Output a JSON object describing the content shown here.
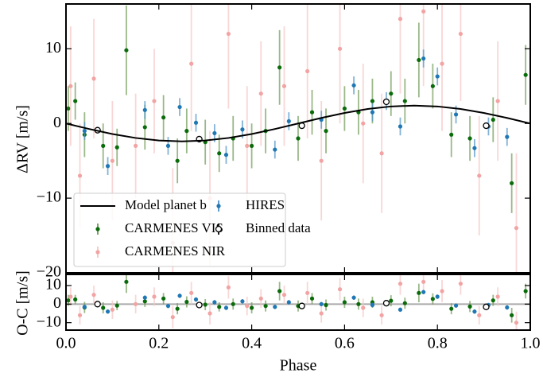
{
  "chart_data": [
    {
      "type": "errorbar",
      "ylabel": "ΔRV [m/s]",
      "xlim": [
        0,
        1
      ],
      "ylim": [
        -20,
        16
      ],
      "xticks": [
        0,
        0.2,
        0.4,
        0.6,
        0.8,
        1
      ],
      "yticks": [
        {
          "value": -20,
          "label": "−20"
        },
        {
          "value": -10,
          "label": "−10"
        },
        0,
        10
      ],
      "legend": "lower left",
      "series": [
        {
          "name": "Model planet b",
          "marker": "line",
          "color": "#000000",
          "x": [
            0,
            0.05,
            0.1,
            0.15,
            0.2,
            0.25,
            0.3,
            0.35,
            0.4,
            0.45,
            0.5,
            0.55,
            0.6,
            0.65,
            0.7,
            0.75,
            0.8,
            0.85,
            0.9,
            0.95,
            1
          ],
          "values": [
            0,
            -0.74,
            -1.41,
            -1.94,
            -2.28,
            -2.4,
            -2.28,
            -1.94,
            -1.41,
            -0.74,
            0,
            0.74,
            1.41,
            1.94,
            2.28,
            2.4,
            2.28,
            1.94,
            1.41,
            0.74,
            0
          ]
        },
        {
          "name": "CARMENES VIS",
          "marker": "point",
          "color": "#0a6b0a",
          "error_color": "#6f9a55",
          "x": [
            0.005,
            0.02,
            0.04,
            0.08,
            0.11,
            0.13,
            0.17,
            0.21,
            0.24,
            0.26,
            0.3,
            0.33,
            0.36,
            0.4,
            0.43,
            0.46,
            0.5,
            0.53,
            0.56,
            0.6,
            0.63,
            0.66,
            0.7,
            0.73,
            0.76,
            0.79,
            0.83,
            0.87,
            0.92,
            0.96,
            0.99
          ],
          "values": [
            2,
            3,
            -1.5,
            -3,
            -3.2,
            9.8,
            -0.5,
            0.8,
            -5,
            -1,
            -2.5,
            -4,
            -2,
            -3,
            -1,
            7.5,
            -2,
            1.5,
            -1,
            2,
            1.5,
            3,
            4,
            3,
            8.5,
            5,
            -1.5,
            -2,
            0.5,
            -8,
            6.5
          ],
          "errors": [
            3,
            2.5,
            3,
            3,
            2.5,
            6,
            3,
            3,
            3,
            3,
            3,
            2.5,
            3,
            3,
            3,
            5,
            3,
            3,
            3,
            3,
            3,
            3,
            3,
            3,
            5,
            3,
            3,
            3,
            3,
            4,
            4
          ]
        },
        {
          "name": "CARMENES NIR",
          "marker": "point",
          "color": "#f2a3a3",
          "error_color": "#f7c4c4",
          "x": [
            0.01,
            0.03,
            0.06,
            0.1,
            0.15,
            0.19,
            0.23,
            0.27,
            0.31,
            0.35,
            0.39,
            0.42,
            0.47,
            0.52,
            0.55,
            0.59,
            0.64,
            0.68,
            0.72,
            0.77,
            0.81,
            0.85,
            0.89,
            0.93,
            0.97
          ],
          "values": [
            5,
            -7,
            6,
            -5,
            -3,
            3,
            -16,
            8,
            -10,
            12,
            -3,
            4,
            5,
            7,
            -5,
            10,
            0,
            -4,
            14,
            15,
            8,
            12,
            -7,
            3,
            -14
          ],
          "errors": [
            8,
            7,
            8,
            8,
            7,
            7,
            10,
            9,
            9,
            10,
            8,
            7,
            8,
            9,
            8,
            10,
            8,
            8,
            10,
            10,
            9,
            9,
            8,
            8,
            10
          ]
        },
        {
          "name": "HIRES",
          "marker": "point",
          "color": "#1f77b4",
          "error_color": "#4d93c8",
          "x": [
            0.04,
            0.09,
            0.17,
            0.22,
            0.245,
            0.28,
            0.32,
            0.345,
            0.38,
            0.45,
            0.48,
            0.55,
            0.62,
            0.66,
            0.69,
            0.72,
            0.77,
            0.8,
            0.84,
            0.88,
            0.91,
            0.95
          ],
          "values": [
            -1,
            -5.7,
            1.8,
            -3,
            2.2,
            0.1,
            -1.3,
            -4.2,
            -0.8,
            -3.5,
            0.3,
            0.5,
            5.1,
            1.5,
            3,
            -0.4,
            8.7,
            6.3,
            1.2,
            -3.3,
            -0.4,
            -1.8
          ],
          "errors": [
            1.2,
            1.2,
            1.2,
            1.2,
            1.2,
            1.2,
            1.2,
            1.2,
            1.2,
            1.2,
            1.2,
            1.2,
            1.2,
            1.2,
            1.2,
            1.2,
            1.2,
            1.2,
            1.2,
            1.2,
            1.2,
            1.2
          ]
        },
        {
          "name": "Binned data",
          "marker": "open",
          "color": "#000000",
          "face_color": "#ffffff",
          "error_color": "#000000",
          "x": [
            0.068,
            0.287,
            0.508,
            0.69,
            0.905
          ],
          "values": [
            -0.9,
            -2.1,
            -0.3,
            2.9,
            -0.3
          ],
          "errors": [
            0.3,
            0.4,
            0.3,
            0.4,
            0.3
          ]
        }
      ]
    },
    {
      "type": "errorbar",
      "ylabel": "O-C [m/s]",
      "xlabel": "Phase",
      "xlim": [
        0,
        1
      ],
      "ylim": [
        -14,
        16
      ],
      "xticks": [
        {
          "value": 0,
          "label": "0.0"
        },
        0.2,
        0.4,
        0.6,
        0.8,
        {
          "value": 1,
          "label": "1.0"
        }
      ],
      "yticks": [
        {
          "value": -10,
          "label": "−10"
        },
        0,
        10
      ],
      "zero_line_color": "#aaaaaa",
      "series": [
        {
          "marker": "point",
          "color": "#0a6b0a",
          "error_color": "#6f9a55",
          "x": [
            0.005,
            0.02,
            0.04,
            0.08,
            0.11,
            0.13,
            0.17,
            0.21,
            0.24,
            0.26,
            0.3,
            0.33,
            0.36,
            0.4,
            0.43,
            0.46,
            0.5,
            0.53,
            0.56,
            0.6,
            0.63,
            0.66,
            0.7,
            0.73,
            0.76,
            0.79,
            0.83,
            0.87,
            0.92,
            0.96,
            0.99
          ],
          "values": [
            2,
            2.5,
            -1.8,
            -2,
            -0.8,
            12,
            1.5,
            3,
            -2.5,
            1.2,
            -0.3,
            -1.5,
            0,
            -2,
            -1,
            7,
            -1,
            3,
            -0.5,
            1,
            0,
            1,
            1.8,
            0.5,
            6,
            2.8,
            -2.5,
            -1.3,
            2,
            -6,
            7
          ],
          "errors": [
            3,
            2.5,
            3,
            3,
            2.5,
            6,
            3,
            3,
            3,
            3,
            3,
            2.5,
            3,
            3,
            3,
            5,
            3,
            3,
            3,
            3,
            3,
            3,
            3,
            3,
            5,
            3,
            3,
            3,
            3,
            4,
            4
          ]
        },
        {
          "marker": "point",
          "color": "#f2a3a3",
          "error_color": "#f7c4c4",
          "x": [
            0.01,
            0.03,
            0.06,
            0.1,
            0.15,
            0.19,
            0.23,
            0.27,
            0.31,
            0.35,
            0.39,
            0.42,
            0.47,
            0.52,
            0.55,
            0.59,
            0.64,
            0.68,
            0.72,
            0.77,
            0.81,
            0.85,
            0.89,
            0.93,
            0.97
          ],
          "values": [
            4,
            -6,
            5,
            -3,
            0,
            4,
            -7,
            6,
            -5,
            9,
            -1,
            3,
            5,
            6,
            -5,
            8,
            -2,
            -6,
            11,
            12,
            7,
            11,
            -6,
            4,
            -10
          ],
          "errors": [
            5,
            5,
            5,
            5,
            5,
            5,
            6,
            6,
            6,
            6,
            5,
            5,
            5,
            6,
            5,
            6,
            5,
            5,
            6,
            6,
            6,
            6,
            5,
            5,
            6
          ]
        },
        {
          "marker": "point",
          "color": "#1f77b4",
          "error_color": "#4d93c8",
          "x": [
            0.04,
            0.09,
            0.17,
            0.22,
            0.245,
            0.28,
            0.32,
            0.345,
            0.38,
            0.45,
            0.48,
            0.55,
            0.62,
            0.66,
            0.69,
            0.72,
            0.77,
            0.8,
            0.84,
            0.88,
            0.91,
            0.95
          ],
          "values": [
            -1.5,
            -4,
            3.5,
            -1,
            4.5,
            2.5,
            1,
            -2,
            1.5,
            -1.5,
            1,
            0,
            3.5,
            -0.5,
            0.5,
            -3,
            6.5,
            4,
            -0.8,
            -4,
            -0.5,
            -1.8
          ],
          "errors": [
            1.2,
            1.2,
            1.2,
            1.2,
            1.2,
            1.2,
            1.2,
            1.2,
            1.2,
            1.2,
            1.2,
            1.2,
            1.2,
            1.2,
            1.2,
            1.2,
            1.2,
            1.2,
            1.2,
            1.2,
            1.2,
            1.2
          ]
        },
        {
          "marker": "open",
          "color": "#000000",
          "face_color": "#ffffff",
          "error_color": "#000000",
          "x": [
            0.068,
            0.287,
            0.508,
            0.69,
            0.905
          ],
          "values": [
            0,
            -0.5,
            -1,
            0.5,
            -1.5
          ],
          "errors": [
            0.3,
            0.4,
            0.3,
            0.4,
            0.3
          ]
        }
      ]
    }
  ]
}
